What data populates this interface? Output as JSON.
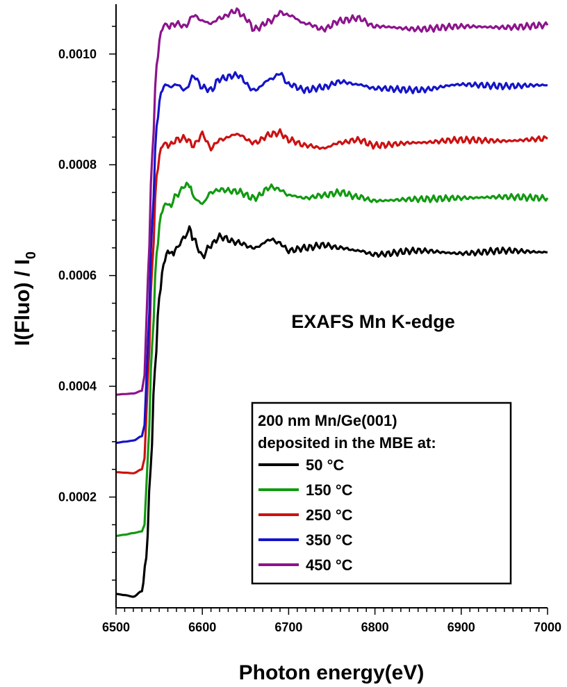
{
  "chart_data": {
    "type": "line",
    "xlabel": "Photon energy(eV)",
    "ylabel_main": "I(Fluo) / I",
    "ylabel_sub": "0",
    "annotation": "EXAFS Mn K-edge",
    "xlim": [
      6500,
      7000
    ],
    "ylim": [
      0.0,
      0.00109
    ],
    "x_ticks": [
      6500,
      6600,
      6700,
      6800,
      6900,
      7000
    ],
    "x_tick_labels": [
      "6500",
      "6600",
      "6700",
      "6800",
      "6900",
      "7000"
    ],
    "y_ticks": [
      0.0002,
      0.0004,
      0.0006,
      0.0008,
      0.001
    ],
    "y_tick_labels": [
      "0.0002",
      "0.0004",
      "0.0006",
      "0.0008",
      "0.0010"
    ],
    "legend": {
      "title_lines": [
        "200 nm Mn/Ge(001)",
        "deposited in the MBE at:"
      ],
      "placement": "bottom-right"
    },
    "series": [
      {
        "name": "50 °C",
        "color": "#000000",
        "x": [
          6500,
          6510,
          6520,
          6530,
          6535,
          6540,
          6545,
          6550,
          6555,
          6560,
          6565,
          6570,
          6580,
          6585,
          6590,
          6600,
          6610,
          6620,
          6640,
          6660,
          6680,
          6690,
          6700,
          6720,
          6740,
          6760,
          6780,
          6800,
          6850,
          6900,
          6950,
          7000
        ],
        "y": [
          2.5e-05,
          2.3e-05,
          2e-05,
          3e-05,
          9e-05,
          0.00025,
          0.00043,
          0.00056,
          0.00062,
          0.000645,
          0.000638,
          0.00065,
          0.00067,
          0.000685,
          0.000665,
          0.000635,
          0.000655,
          0.00067,
          0.00066,
          0.00065,
          0.000665,
          0.000658,
          0.000645,
          0.00065,
          0.000655,
          0.00065,
          0.000645,
          0.000638,
          0.000645,
          0.00064,
          0.000645,
          0.000642
        ]
      },
      {
        "name": "150 °C",
        "color": "#119a11",
        "x": [
          6500,
          6510,
          6520,
          6530,
          6533,
          6537,
          6542,
          6547,
          6552,
          6557,
          6562,
          6570,
          6580,
          6585,
          6590,
          6600,
          6610,
          6620,
          6640,
          6660,
          6680,
          6690,
          6700,
          6720,
          6740,
          6760,
          6780,
          6800,
          6850,
          6900,
          6950,
          7000
        ],
        "y": [
          0.00013,
          0.000132,
          0.000135,
          0.000138,
          0.00015,
          0.00028,
          0.00048,
          0.00064,
          0.00071,
          0.00073,
          0.000725,
          0.000745,
          0.000762,
          0.000765,
          0.00074,
          0.00073,
          0.00075,
          0.000755,
          0.000752,
          0.00074,
          0.00076,
          0.000755,
          0.000745,
          0.00074,
          0.000745,
          0.00075,
          0.000742,
          0.000735,
          0.000738,
          0.00074,
          0.000742,
          0.00074
        ]
      },
      {
        "name": "250 °C",
        "color": "#cc1111",
        "x": [
          6500,
          6510,
          6520,
          6530,
          6533,
          6537,
          6542,
          6547,
          6552,
          6557,
          6562,
          6570,
          6580,
          6590,
          6600,
          6610,
          6620,
          6640,
          6660,
          6680,
          6690,
          6700,
          6720,
          6740,
          6760,
          6780,
          6800,
          6850,
          6900,
          6950,
          7000
        ],
        "y": [
          0.000245,
          0.000244,
          0.000243,
          0.00025,
          0.00027,
          0.00042,
          0.00062,
          0.00078,
          0.00083,
          0.00084,
          0.000835,
          0.000845,
          0.000848,
          0.000835,
          0.000855,
          0.00083,
          0.000845,
          0.000855,
          0.00084,
          0.000855,
          0.000858,
          0.000845,
          0.000835,
          0.00083,
          0.00084,
          0.000845,
          0.000835,
          0.00084,
          0.000845,
          0.000843,
          0.000847
        ]
      },
      {
        "name": "350 °C",
        "color": "#1414c8",
        "x": [
          6500,
          6510,
          6520,
          6530,
          6533,
          6537,
          6542,
          6547,
          6552,
          6557,
          6562,
          6570,
          6580,
          6590,
          6600,
          6610,
          6620,
          6640,
          6660,
          6680,
          6690,
          6700,
          6720,
          6740,
          6760,
          6780,
          6800,
          6850,
          6900,
          6950,
          7000
        ],
        "y": [
          0.000298,
          0.0003,
          0.000302,
          0.00031,
          0.00033,
          0.00048,
          0.0007,
          0.00087,
          0.00093,
          0.000945,
          0.00094,
          0.000945,
          0.000935,
          0.00096,
          0.00094,
          0.000935,
          0.000955,
          0.000962,
          0.000935,
          0.000955,
          0.000965,
          0.000945,
          0.000935,
          0.00094,
          0.00095,
          0.000945,
          0.000938,
          0.000935,
          0.000945,
          0.000942,
          0.000944
        ]
      },
      {
        "name": "450 °C",
        "color": "#8c148c",
        "x": [
          6500,
          6510,
          6520,
          6530,
          6533,
          6537,
          6542,
          6547,
          6552,
          6557,
          6562,
          6570,
          6580,
          6590,
          6600,
          6610,
          6620,
          6640,
          6650,
          6660,
          6680,
          6690,
          6700,
          6720,
          6740,
          6760,
          6780,
          6800,
          6850,
          6900,
          6950,
          7000
        ],
        "y": [
          0.000385,
          0.000386,
          0.000387,
          0.000392,
          0.00042,
          0.0006,
          0.00082,
          0.00098,
          0.00104,
          0.001055,
          0.00105,
          0.001055,
          0.00105,
          0.00107,
          0.00106,
          0.001055,
          0.001065,
          0.001078,
          0.001065,
          0.001045,
          0.00106,
          0.001075,
          0.00107,
          0.001055,
          0.001045,
          0.00106,
          0.001065,
          0.00105,
          0.001045,
          0.00105,
          0.001048,
          0.001052
        ]
      }
    ]
  }
}
